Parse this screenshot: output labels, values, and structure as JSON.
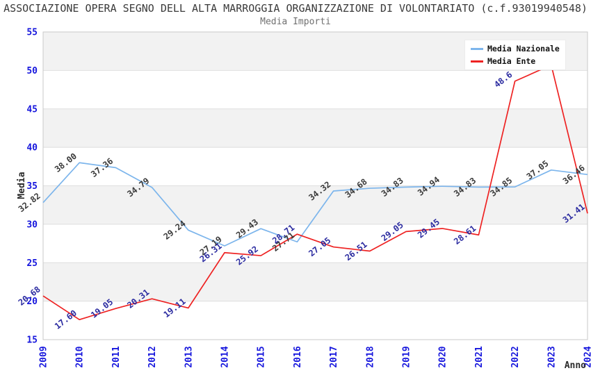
{
  "chart_data": {
    "type": "line",
    "title": "ASSOCIAZIONE OPERA SEGNO DELL ALTA MARROGGIA ORGANIZZAZIONE DI VOLONTARIATO (c.f.93019940548)",
    "subtitle": "Media Importi",
    "xlabel": "Anno",
    "ylabel": "Media",
    "x": [
      "2009",
      "2010",
      "2011",
      "2012",
      "2013",
      "2014",
      "2015",
      "2016",
      "2017",
      "2018",
      "2019",
      "2020",
      "2021",
      "2022",
      "2023",
      "2024"
    ],
    "ylim": [
      15,
      55
    ],
    "ytick_step": 5,
    "grid": "horizontal-gridlines-with-alternating-bands",
    "legend_position": "top-right",
    "series": [
      {
        "name": "Media Nazionale",
        "color": "#7cb5ec",
        "label_color": "#3a3a3a",
        "values": [
          32.82,
          38.0,
          37.36,
          34.79,
          29.24,
          27.19,
          29.43,
          27.71,
          34.32,
          34.68,
          34.83,
          34.94,
          34.83,
          34.85,
          37.05,
          36.46
        ],
        "point_labels": [
          "32.82",
          "38.00",
          "37.36",
          "34.79",
          "29.24",
          "27.19",
          "29.43",
          "27.71",
          "34.32",
          "34.68",
          "34.83",
          "34.94",
          "34.83",
          "34.85",
          "37.05",
          "36.46"
        ]
      },
      {
        "name": "Media Ente",
        "color": "#ee2222",
        "label_color": "#2b2ba0",
        "values": [
          20.68,
          17.6,
          19.05,
          20.31,
          19.11,
          26.31,
          25.92,
          28.71,
          27.05,
          26.51,
          29.05,
          29.45,
          28.61,
          48.6,
          50.7,
          31.41
        ],
        "point_labels": [
          "20.68",
          "17.60",
          "19.05",
          "20.31",
          "19.11",
          "26.31",
          "25.92",
          "28.71",
          "27.05",
          "26.51",
          "29.05",
          "29.45",
          "28.61",
          "48.6",
          "",
          "31.41"
        ]
      }
    ],
    "colors": {
      "axis_tick": "#1616dd",
      "band": "#f2f2f2",
      "gridline": "#dedede",
      "plot_border": "#c9c9c9",
      "axis_title": "#2b2b2b"
    }
  }
}
